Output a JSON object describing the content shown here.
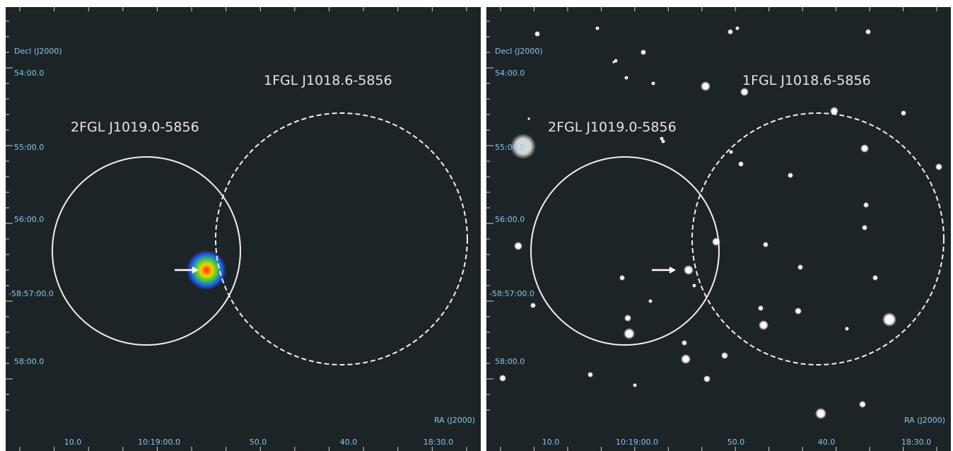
{
  "panels": [
    {
      "dec_axis_label": "Decl (J2000)",
      "ra_axis_label": "RA (J2000)",
      "dec_ticks": [
        "54:00.0",
        "55:00.0",
        "56:00.0",
        "-58:57:00.0",
        "58:00.0"
      ],
      "ra_ticks": [
        "10.0",
        "10:19:00.0",
        "50.0",
        "40.0",
        "18:30.0"
      ],
      "sources": [
        "1FGL J1018.6-5856",
        "2FGL J1019.0-5856"
      ]
    },
    {
      "dec_axis_label": "Decl (J2000)",
      "ra_axis_label": "RA (J2000)",
      "dec_ticks": [
        "54:00.0",
        "55:00.0",
        "56:00.0",
        "-58:57:00.0",
        "58:00.0"
      ],
      "ra_ticks": [
        "10.0",
        "10:19:00.0",
        "50.0",
        "40.0",
        "18:30.0"
      ],
      "sources": [
        "1FGL J1018.6-5856",
        "2FGL J1019.0-5856"
      ]
    }
  ]
}
